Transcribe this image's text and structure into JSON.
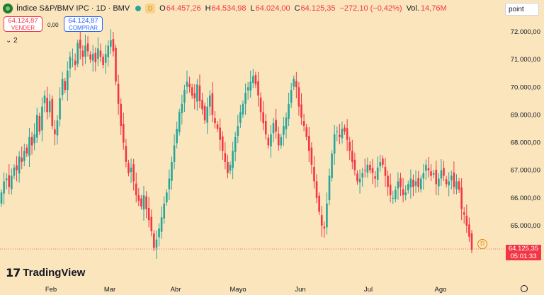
{
  "header": {
    "symbol": "Índice S&P/BMV IPC · 1D · BMV",
    "d_badge": "D",
    "open_label": "O",
    "open": "64.457,26",
    "high_label": "H",
    "high": "64.534,98",
    "low_label": "L",
    "low": "64.024,00",
    "close_label": "C",
    "close": "64.125,35",
    "change": "−272,10 (−0,42%)",
    "vol_label": "Vol.",
    "vol": "14,76M"
  },
  "scale_select": "point",
  "trade": {
    "sell_price": "64.124,87",
    "sell_label": "VENDER",
    "spread": "0,00",
    "buy_price": "64.124,87",
    "buy_label": "COMPRAR"
  },
  "indicators_toggle": "2",
  "brand": "TradingView",
  "last_price": {
    "value": "64.125,35",
    "countdown": "05:01:33"
  },
  "dividend_marker": "D",
  "colors": {
    "up": "#26a69a",
    "down": "#f23645",
    "background": "#fbe5bd",
    "accent": "#2962ff"
  },
  "chart_data": {
    "type": "candlestick",
    "x_labels": [
      "Feb",
      "Mar",
      "Abr",
      "Mayo",
      "Jun",
      "Jul",
      "Ago"
    ],
    "y_ticks": [
      "72.000,00",
      "71.000,00",
      "70.000,00",
      "69.000,00",
      "68.000,00",
      "67.000,00",
      "66.000,00",
      "65.000,00"
    ],
    "ylim": [
      63900,
      72500
    ],
    "last_price": 64125.35,
    "closes": [
      66200,
      66600,
      66700,
      66400,
      66800,
      67100,
      67000,
      67500,
      67300,
      67700,
      67600,
      68200,
      67900,
      68300,
      69000,
      68400,
      69300,
      69700,
      69100,
      69500,
      68600,
      68300,
      68800,
      69600,
      70300,
      69900,
      70600,
      71100,
      71000,
      70800,
      71600,
      71400,
      71100,
      71500,
      71300,
      71000,
      71200,
      70900,
      71400,
      71100,
      70800,
      71200,
      71500,
      71700,
      71300,
      70200,
      69400,
      68600,
      68000,
      67300,
      66900,
      67100,
      66600,
      66100,
      65900,
      65700,
      66100,
      65600,
      65200,
      64800,
      64200,
      64500,
      64900,
      65300,
      65800,
      66200,
      66700,
      67300,
      67900,
      68500,
      69100,
      69400,
      69900,
      70200,
      70000,
      69700,
      69600,
      70100,
      69500,
      69200,
      68800,
      69300,
      69700,
      69000,
      68700,
      68500,
      68100,
      67700,
      67300,
      66900,
      67200,
      67700,
      68200,
      68600,
      69100,
      69400,
      69800,
      70000,
      70200,
      70400,
      70100,
      69700,
      69100,
      68700,
      68300,
      67900,
      68300,
      68700,
      68400,
      67900,
      68200,
      68600,
      68900,
      69400,
      69900,
      70300,
      70000,
      69300,
      68900,
      68600,
      68200,
      67700,
      67200,
      66600,
      66000,
      65500,
      65000,
      64900,
      65800,
      66800,
      67600,
      68300,
      68400,
      68200,
      68500,
      68400,
      68100,
      67700,
      67300,
      67000,
      66600,
      66700,
      66900,
      67000,
      67200,
      67000,
      66900,
      66700,
      67100,
      67300,
      67200,
      66800,
      66400,
      66100,
      66000,
      66300,
      66600,
      66400,
      66100,
      66200,
      66500,
      66700,
      66400,
      66600,
      66400,
      66700,
      66900,
      67200,
      67000,
      66800,
      66900,
      66500,
      66700,
      67000,
      66800,
      66500,
      66600,
      66800,
      66400,
      66600,
      66300,
      65600,
      65400,
      65000,
      64600,
      64125
    ]
  }
}
